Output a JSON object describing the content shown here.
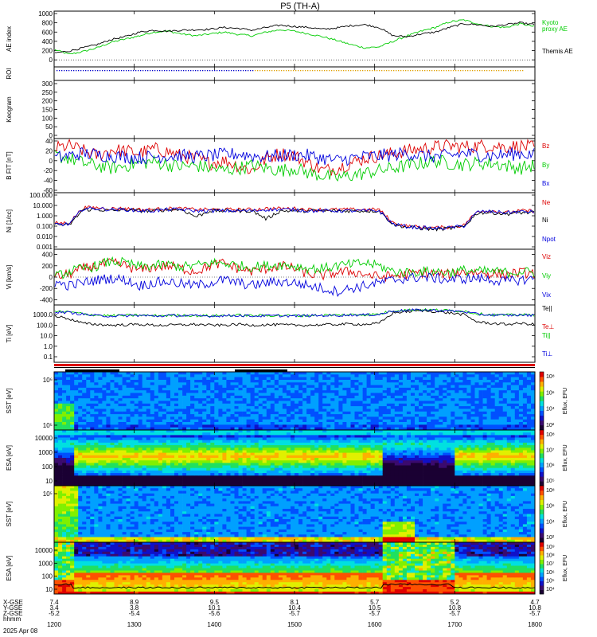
{
  "chart_data": {
    "type": "line",
    "title": "P5 (TH-A)",
    "date_label": "2025 Apr 08",
    "x_time_ticks": [
      "1200",
      "1300",
      "1400",
      "1500",
      "1600",
      "1700",
      "1800"
    ],
    "orbit_rows": [
      {
        "label": "X-GSE",
        "values": [
          "7.4",
          "8.9",
          "9.5",
          "8.1",
          "5.7",
          "5.2",
          "4.7"
        ]
      },
      {
        "label": "Y-GSE",
        "values": [
          "3.4",
          "3.8",
          "10.1",
          "10.4",
          "10.5",
          "10.8",
          "10.8"
        ]
      },
      {
        "label": "Z-GSE",
        "values": [
          "-5.2",
          "-5.4",
          "-5.6",
          "-5.7",
          "-5.7",
          "-5.7",
          "-5.7"
        ]
      },
      {
        "label": "hhmm",
        "values": []
      }
    ],
    "panels": [
      {
        "id": "ae",
        "ylabel": "AE index",
        "ylim": [
          -100,
          1000
        ],
        "yticks": [
          "1000",
          "800",
          "600",
          "400",
          "200",
          "0"
        ],
        "series": [
          {
            "name": "Kyoto",
            "color": "#00cc00",
            "values": [
              220,
              120,
              180,
              260,
              380,
              450,
              520,
              600,
              620,
              560,
              520,
              560,
              600,
              550,
              520,
              600,
              650,
              620,
              560,
              500,
              420,
              330,
              260,
              280,
              400,
              520,
              620,
              700,
              820,
              860,
              780,
              720,
              700,
              780,
              720
            ]
          },
          {
            "name": "proxy AE",
            "color": "#00cc00",
            "values": []
          },
          {
            "name": "Themis AE",
            "color": "#000000",
            "values": [
              150,
              190,
              260,
              330,
              440,
              500,
              600,
              640,
              620,
              640,
              650,
              660,
              700,
              680,
              640,
              700,
              750,
              720,
              700,
              660,
              690,
              740,
              760,
              700,
              520,
              500,
              560,
              600,
              700,
              780,
              760,
              720,
              760,
              800,
              760
            ]
          }
        ]
      },
      {
        "id": "roi",
        "ylabel": "ROI",
        "ylim": [
          0,
          1
        ],
        "yticks": []
      },
      {
        "id": "keogram",
        "ylabel": "Keogram",
        "ylim": [
          0,
          300
        ],
        "yticks": [
          "300",
          "250",
          "200",
          "150",
          "100",
          "50",
          "0"
        ]
      },
      {
        "id": "bfield",
        "ylabel": "B FIT [nT]",
        "ylim": [
          -60,
          40
        ],
        "yticks": [
          "40",
          "20",
          "0",
          "-20",
          "-40",
          "-60"
        ],
        "series": [
          {
            "name": "Bz",
            "color": "#dd0000",
            "values": [
              25,
              30,
              20,
              10,
              22,
              20,
              15,
              24,
              18,
              10,
              5,
              -5,
              0,
              -10,
              -20,
              5,
              15,
              10,
              -5,
              -20,
              -15,
              -5,
              5,
              10,
              15,
              20,
              24,
              28,
              30,
              28,
              30,
              30,
              28,
              30,
              26
            ]
          },
          {
            "name": "By",
            "color": "#00cc00",
            "values": [
              10,
              5,
              -5,
              -10,
              -15,
              -10,
              -5,
              -2,
              -8,
              -12,
              -10,
              -15,
              -20,
              -15,
              -10,
              -15,
              -20,
              -15,
              -25,
              -30,
              -35,
              -30,
              -25,
              -20,
              -15,
              -10,
              -5,
              0,
              -5,
              -8,
              -5,
              -5,
              -10,
              -15,
              -10
            ]
          },
          {
            "name": "Bx",
            "color": "#0000dd",
            "values": [
              5,
              10,
              15,
              12,
              10,
              8,
              6,
              8,
              10,
              10,
              8,
              10,
              12,
              14,
              10,
              8,
              10,
              12,
              10,
              5,
              0,
              5,
              8,
              10,
              12,
              15,
              10,
              8,
              10,
              15,
              12,
              10,
              12,
              15,
              12
            ]
          }
        ]
      },
      {
        "id": "density",
        "ylabel": "Ni [1/cc]",
        "ylim": [
          0.001,
          100
        ],
        "log": true,
        "yticks": [
          "100.000",
          "10.000",
          "1.000",
          "0.100",
          "0.010",
          "0.001"
        ],
        "series": [
          {
            "name": "Ne",
            "color": "#dd0000",
            "values": [
              0.2,
              0.2,
              6,
              6,
              5,
              5,
              4,
              4,
              5,
              5,
              4,
              4,
              4,
              4,
              4,
              5,
              5,
              5,
              4,
              4,
              4,
              4,
              4,
              4,
              0.2,
              0.1,
              0.08,
              0.07,
              0.08,
              0.12,
              3,
              3,
              2,
              3,
              3
            ]
          },
          {
            "name": "Ni",
            "color": "#000000",
            "values": [
              0.15,
              0.12,
              4,
              4,
              3,
              4,
              3,
              3,
              4,
              4,
              0.8,
              3,
              3,
              3,
              3,
              0.5,
              3,
              3,
              3,
              3,
              3,
              3,
              3,
              3,
              0.15,
              0.08,
              0.06,
              0.05,
              0.06,
              0.09,
              2,
              2,
              1.5,
              2,
              2
            ]
          },
          {
            "name": "Npot",
            "color": "#0000dd",
            "values": [
              0.15,
              0.15,
              5,
              5,
              4,
              4,
              3,
              3,
              4,
              4,
              3,
              3,
              3,
              3,
              3,
              4,
              4,
              4,
              3,
              3,
              3,
              3,
              3,
              3,
              0.15,
              0.09,
              0.07,
              0.06,
              0.07,
              0.1,
              2.5,
              2.5,
              2,
              2.5,
              2.5
            ]
          }
        ]
      },
      {
        "id": "velocity",
        "ylabel": "Vi [km/s]",
        "ylim": [
          -450,
          450
        ],
        "yticks": [
          "400",
          "200",
          "0",
          "-200",
          "-400"
        ],
        "series": [
          {
            "name": "Viz",
            "color": "#dd0000",
            "values": [
              0,
              50,
              150,
              200,
              250,
              200,
              120,
              180,
              200,
              150,
              100,
              200,
              250,
              150,
              100,
              150,
              200,
              150,
              50,
              30,
              80,
              100,
              50,
              0,
              20,
              50,
              80,
              60,
              50,
              100,
              80,
              60,
              50,
              80,
              60
            ]
          },
          {
            "name": "Viy",
            "color": "#00cc00",
            "values": [
              0,
              100,
              150,
              200,
              280,
              250,
              180,
              200,
              220,
              180,
              200,
              250,
              250,
              200,
              180,
              200,
              220,
              200,
              150,
              150,
              200,
              220,
              250,
              200,
              100,
              80,
              100,
              100,
              80,
              120,
              100,
              100,
              80,
              100,
              80
            ]
          },
          {
            "name": "Vix",
            "color": "#0000dd",
            "values": [
              -100,
              -150,
              -100,
              -50,
              -20,
              -50,
              -150,
              -100,
              -80,
              -120,
              -150,
              -100,
              -50,
              -100,
              -150,
              -100,
              -80,
              -100,
              -150,
              -200,
              -250,
              -200,
              -150,
              -100,
              -50,
              -20,
              0,
              -20,
              -50,
              -30,
              -20,
              -50,
              -80,
              -50,
              -30
            ]
          }
        ]
      },
      {
        "id": "temperature",
        "ylabel": "Ti [eV]",
        "ylim": [
          0.05,
          5000
        ],
        "log": true,
        "yticks": [
          "1000.0",
          "100.0",
          "10.0",
          "1.0",
          "0.1"
        ],
        "series": [
          {
            "name": "Te||",
            "color": "#000000",
            "values": [
              800,
              400,
              150,
              120,
              100,
              110,
              120,
              100,
              100,
              110,
              120,
              100,
              100,
              120,
              100,
              110,
              110,
              100,
              100,
              110,
              120,
              130,
              120,
              150,
              1500,
              2000,
              2500,
              2000,
              1500,
              1000,
              200,
              150,
              120,
              150,
              120
            ]
          },
          {
            "name": "Te⊥",
            "color": "#dd0000",
            "values": []
          },
          {
            "name": "Ti||",
            "color": "#00cc00",
            "values": [
              2000,
              1800,
              1200,
              900,
              800,
              850,
              900,
              800,
              850,
              900,
              800,
              800,
              850,
              900,
              800,
              850,
              850,
              800,
              850,
              900,
              900,
              1000,
              1000,
              1100,
              2500,
              2800,
              3000,
              2800,
              2500,
              2200,
              1200,
              1000,
              900,
              1000,
              900
            ]
          },
          {
            "name": "Ti⊥",
            "color": "#0000dd",
            "values": [
              1800,
              1600,
              1100,
              800,
              750,
              800,
              850,
              750,
              800,
              850,
              750,
              750,
              800,
              850,
              750,
              800,
              800,
              750,
              800,
              850,
              850,
              950,
              950,
              1050,
              2300,
              2600,
              2800,
              2600,
              2300,
              2000,
              1100,
              950,
              850,
              950,
              850
            ]
          }
        ]
      },
      {
        "id": "mode",
        "ylabel": "",
        "yticks": []
      },
      {
        "id": "sst_i",
        "ylabel": "SST [eV]",
        "cbar_label": "Eflux, EFU",
        "yticks": [
          "10⁶",
          "10⁵"
        ],
        "cbar_ticks": [
          "10⁸",
          "10⁶",
          "10⁴",
          "10²"
        ]
      },
      {
        "id": "esa_i",
        "ylabel": "ESA [eV]",
        "cbar_label": "Eflux, EFU",
        "yticks": [
          "10000",
          "1000",
          "100",
          "10"
        ],
        "cbar_ticks": [
          "10⁸",
          "10⁷",
          "10⁶",
          "10⁵"
        ]
      },
      {
        "id": "sst_e",
        "ylabel": "SST [eV]",
        "cbar_label": "Eflux, EFU",
        "yticks": [
          "10⁵"
        ],
        "cbar_ticks": [
          "10⁸",
          "10⁶",
          "10⁴",
          "10²"
        ]
      },
      {
        "id": "esa_e",
        "ylabel": "ESA [eV]",
        "cbar_label": "Eflux, EFU",
        "yticks": [
          "10000",
          "1000",
          "100",
          "10"
        ],
        "cbar_ticks": [
          "10⁹",
          "10⁸",
          "10⁷",
          "10⁶",
          "10⁵",
          "10⁴"
        ]
      }
    ],
    "colors": {
      "black": "#000000",
      "red": "#dd0000",
      "green": "#00cc00",
      "blue": "#0000dd",
      "roi_dots": "#e0a000",
      "mode_bar": "#dd0000"
    }
  }
}
